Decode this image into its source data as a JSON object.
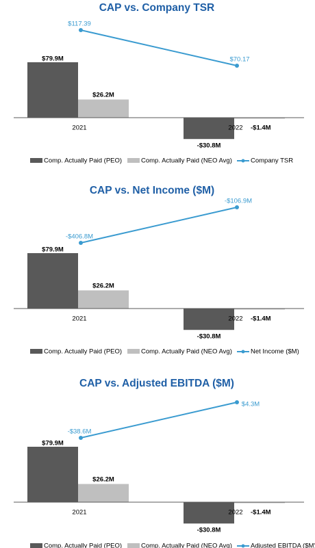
{
  "colors": {
    "title": "#1f5fa6",
    "peo": "#595959",
    "neo": "#bfbfbf",
    "line": "#3a9bd0",
    "axis": "#595959",
    "text": "#000000"
  },
  "chart_data": [
    {
      "type": "bar",
      "title": "CAP vs. Company TSR",
      "categories": [
        "2021",
        "2022"
      ],
      "series": [
        {
          "name": "Comp. Actually Paid (PEO)",
          "values": [
            79.9,
            -30.8
          ],
          "labels": [
            "$79.9M",
            "-$30.8M"
          ]
        },
        {
          "name": "Comp. Actually Paid (NEO Avg)",
          "values": [
            26.2,
            -1.4
          ],
          "labels": [
            "$26.2M",
            "-$1.4M"
          ]
        }
      ],
      "line": {
        "name": "Company TSR",
        "values": [
          117.39,
          70.17
        ],
        "labels": [
          "$117.39",
          "$70.17"
        ]
      },
      "legend": "bottom"
    },
    {
      "type": "bar",
      "title": "CAP vs. Net Income ($M)",
      "categories": [
        "2021",
        "2022"
      ],
      "series": [
        {
          "name": "Comp. Actually Paid (PEO)",
          "values": [
            79.9,
            -30.8
          ],
          "labels": [
            "$79.9M",
            "-$30.8M"
          ]
        },
        {
          "name": "Comp. Actually Paid (NEO Avg)",
          "values": [
            26.2,
            -1.4
          ],
          "labels": [
            "$26.2M",
            "-$1.4M"
          ]
        }
      ],
      "line": {
        "name": "Net Income ($M)",
        "values": [
          -406.8,
          -106.9
        ],
        "labels": [
          "-$406.8M",
          "-$106.9M"
        ]
      },
      "legend": "bottom"
    },
    {
      "type": "bar",
      "title": "CAP vs. Adjusted EBITDA ($M)",
      "categories": [
        "2021",
        "2022"
      ],
      "series": [
        {
          "name": "Comp. Actually Paid (PEO)",
          "values": [
            79.9,
            -30.8
          ],
          "labels": [
            "$79.9M",
            "-$30.8M"
          ]
        },
        {
          "name": "Comp. Actually Paid (NEO Avg)",
          "values": [
            26.2,
            -1.4
          ],
          "labels": [
            "$26.2M",
            "-$1.4M"
          ]
        }
      ],
      "line": {
        "name": "Adjusted EBITDA ($M)",
        "values": [
          -38.6,
          4.3
        ],
        "labels": [
          "-$38.6M",
          "$4.3M"
        ]
      },
      "legend": "bottom"
    }
  ]
}
